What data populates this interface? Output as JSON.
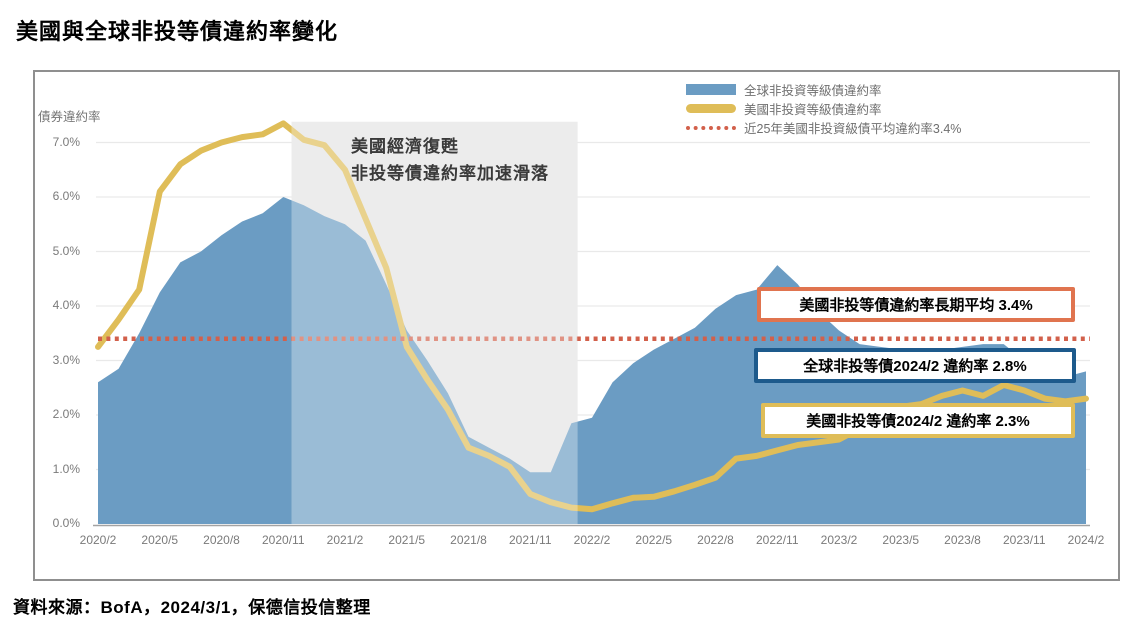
{
  "page": {
    "title": "美國與全球非投等債違約率變化",
    "source": "資料來源：BofA，2024/3/1，保德信投信整理"
  },
  "colors": {
    "global_area": "#6B9CC3",
    "us_line": "#DFBD58",
    "avg_dotted": "#D2604B",
    "highlight_band": "#E4E4E4",
    "callout_orange": "#E0744F",
    "callout_navy": "#1D5A8C",
    "callout_yellow": "#DFBD58",
    "gridline": "#E9E9E9",
    "axis_text": "#7a7a7a"
  },
  "chart_data": {
    "type": "area+line",
    "ylabel": "債券違約率",
    "ylim": [
      0,
      7.5
    ],
    "grid": "horizontal",
    "legend_position": "top-right",
    "y_tick_labels": [
      "7.0%",
      "6.0%",
      "5.0%",
      "4.0%",
      "3.0%",
      "2.0%",
      "1.0%",
      "0.0%"
    ],
    "x_tick_labels": [
      "2020/2",
      "2020/5",
      "2020/8",
      "2020/11",
      "2021/2",
      "2021/5",
      "2021/8",
      "2021/11",
      "2022/2",
      "2022/5",
      "2022/8",
      "2022/11",
      "2023/2",
      "2023/5",
      "2023/8",
      "2023/11",
      "2024/2"
    ],
    "x": [
      "2020/2",
      "2020/3",
      "2020/4",
      "2020/5",
      "2020/6",
      "2020/7",
      "2020/8",
      "2020/9",
      "2020/10",
      "2020/11",
      "2020/12",
      "2021/1",
      "2021/2",
      "2021/3",
      "2021/4",
      "2021/5",
      "2021/6",
      "2021/7",
      "2021/8",
      "2021/9",
      "2021/10",
      "2021/11",
      "2021/12",
      "2022/1",
      "2022/2",
      "2022/3",
      "2022/4",
      "2022/5",
      "2022/6",
      "2022/7",
      "2022/8",
      "2022/9",
      "2022/10",
      "2022/11",
      "2022/12",
      "2023/1",
      "2023/2",
      "2023/3",
      "2023/4",
      "2023/5",
      "2023/6",
      "2023/7",
      "2023/8",
      "2023/9",
      "2023/10",
      "2023/11",
      "2023/12",
      "2024/1",
      "2024/2"
    ],
    "series": [
      {
        "name": "全球非投資等級債違約率",
        "type": "area",
        "color": "#6B9CC3",
        "values": [
          2.6,
          2.85,
          3.5,
          4.25,
          4.8,
          5.0,
          5.3,
          5.55,
          5.7,
          6.0,
          5.85,
          5.65,
          5.5,
          5.2,
          4.4,
          3.55,
          3.0,
          2.4,
          1.6,
          1.4,
          1.2,
          0.95,
          0.95,
          1.85,
          1.95,
          2.6,
          2.95,
          3.2,
          3.4,
          3.6,
          3.95,
          4.2,
          4.3,
          4.75,
          4.4,
          3.9,
          3.55,
          3.3,
          3.25,
          3.2,
          3.2,
          3.2,
          3.25,
          3.3,
          3.3,
          3.0,
          2.8,
          2.7,
          2.8
        ]
      },
      {
        "name": "美國非投資等級債違約率",
        "type": "line",
        "color": "#DFBD58",
        "values": [
          3.25,
          3.75,
          4.3,
          6.1,
          6.6,
          6.85,
          7.0,
          7.1,
          7.15,
          7.35,
          7.05,
          6.95,
          6.5,
          5.6,
          4.7,
          3.25,
          2.65,
          2.1,
          1.4,
          1.25,
          1.05,
          0.55,
          0.4,
          0.3,
          0.27,
          0.38,
          0.48,
          0.5,
          0.6,
          0.72,
          0.85,
          1.2,
          1.25,
          1.35,
          1.45,
          1.5,
          1.55,
          1.75,
          2.05,
          2.15,
          2.2,
          2.35,
          2.45,
          2.35,
          2.55,
          2.45,
          2.3,
          2.25,
          2.3
        ]
      },
      {
        "name": "近25年美國非投資級債平均違約率3.4%",
        "type": "dotted-hline",
        "color": "#D2604B",
        "value": 3.4
      }
    ],
    "highlight_band": {
      "from": "2020/11",
      "to": "2022/1",
      "from_index": 9.4,
      "to_index": 23.3,
      "top_value": 7.38,
      "color": "#E4E4E4"
    },
    "annotation": {
      "line1": "美國經濟復甦",
      "line2": "非投等債違約率加速滑落"
    },
    "callouts": [
      {
        "text": "美國非投等債違約率長期平均 3.4%",
        "border_color": "#E0744F"
      },
      {
        "text": "全球非投等債2024/2 違約率 2.8%",
        "border_color": "#1D5A8C"
      },
      {
        "text": "美國非投等債2024/2 違約率 2.3%",
        "border_color": "#DFBD58"
      }
    ]
  }
}
